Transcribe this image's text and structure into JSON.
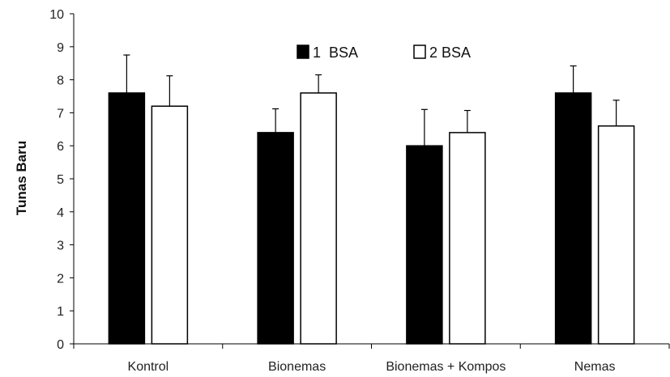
{
  "chart_data": {
    "type": "bar",
    "ylabel": "Tunas Baru",
    "ylim": [
      0,
      10
    ],
    "yticks": [
      0,
      1,
      2,
      3,
      4,
      5,
      6,
      7,
      8,
      9,
      10
    ],
    "categories": [
      "Kontrol",
      "Bionemas",
      "Bionemas + Kompos",
      "Nemas"
    ],
    "series": [
      {
        "name": "1  BSA",
        "color": "#000000",
        "values": [
          7.6,
          6.4,
          6.0,
          7.6
        ],
        "errors": [
          1.15,
          0.72,
          1.1,
          0.82
        ]
      },
      {
        "name": "2 BSA",
        "color": "#ffffff",
        "values": [
          7.2,
          7.6,
          6.4,
          6.6
        ],
        "errors": [
          0.92,
          0.55,
          0.67,
          0.78
        ]
      }
    ],
    "legend": "top-center",
    "grid": false
  }
}
